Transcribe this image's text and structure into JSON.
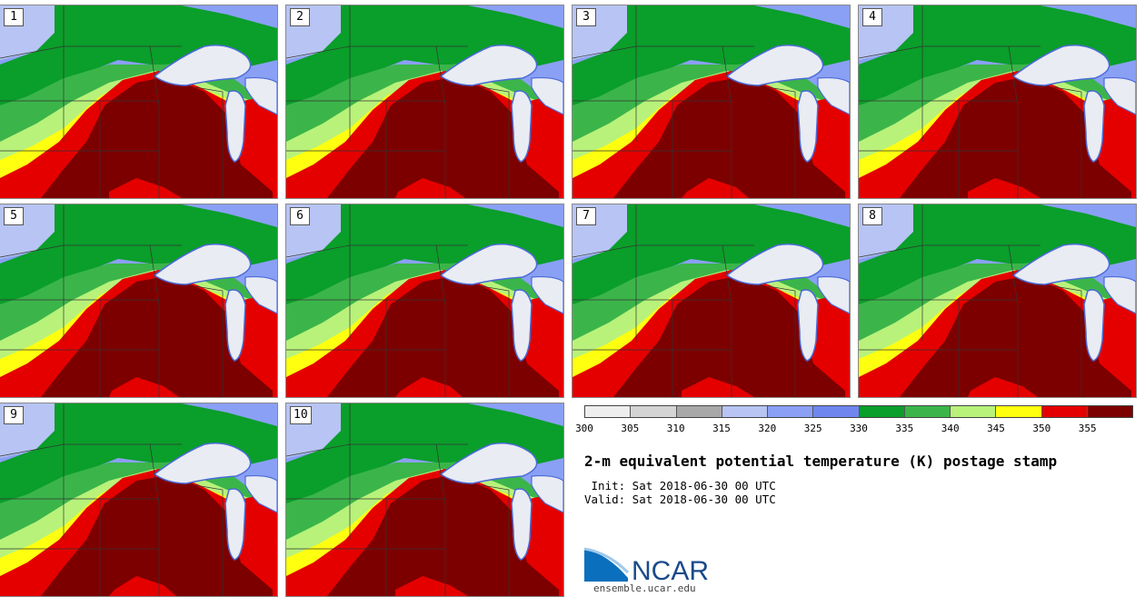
{
  "panels": [
    {
      "label": "1"
    },
    {
      "label": "2"
    },
    {
      "label": "3"
    },
    {
      "label": "4"
    },
    {
      "label": "5"
    },
    {
      "label": "6"
    },
    {
      "label": "7"
    },
    {
      "label": "8"
    },
    {
      "label": "9"
    },
    {
      "label": "10"
    }
  ],
  "colorbar": {
    "ticks": [
      "300",
      "305",
      "310",
      "315",
      "320",
      "325",
      "330",
      "335",
      "340",
      "345",
      "350",
      "355"
    ],
    "colors": [
      "#eeeeee",
      "#d4d4d4",
      "#a8a8a8",
      "#b7c4f4",
      "#8aa0f5",
      "#6f86ef",
      "#0a9e2a",
      "#3bb54a",
      "#b8f27a",
      "#ffff10",
      "#e50000",
      "#7d0000"
    ]
  },
  "title": "2-m equivalent potential temperature (K) postage stamp",
  "init": " Init: Sat 2018-06-30 00 UTC",
  "valid": "Valid: Sat 2018-06-30 00 UTC",
  "logo": {
    "text": "NCAR",
    "url": "ensemble.ucar.edu"
  },
  "map_colors": {
    "cold": "#8aa0f5",
    "cool": "#6f86ef",
    "green_dark": "#0a9e2a",
    "green": "#3bb54a",
    "light_green": "#b8f27a",
    "yellow": "#ffff10",
    "red": "#e50000",
    "dark_red": "#7d0000",
    "lake": "#e9ecf2"
  }
}
